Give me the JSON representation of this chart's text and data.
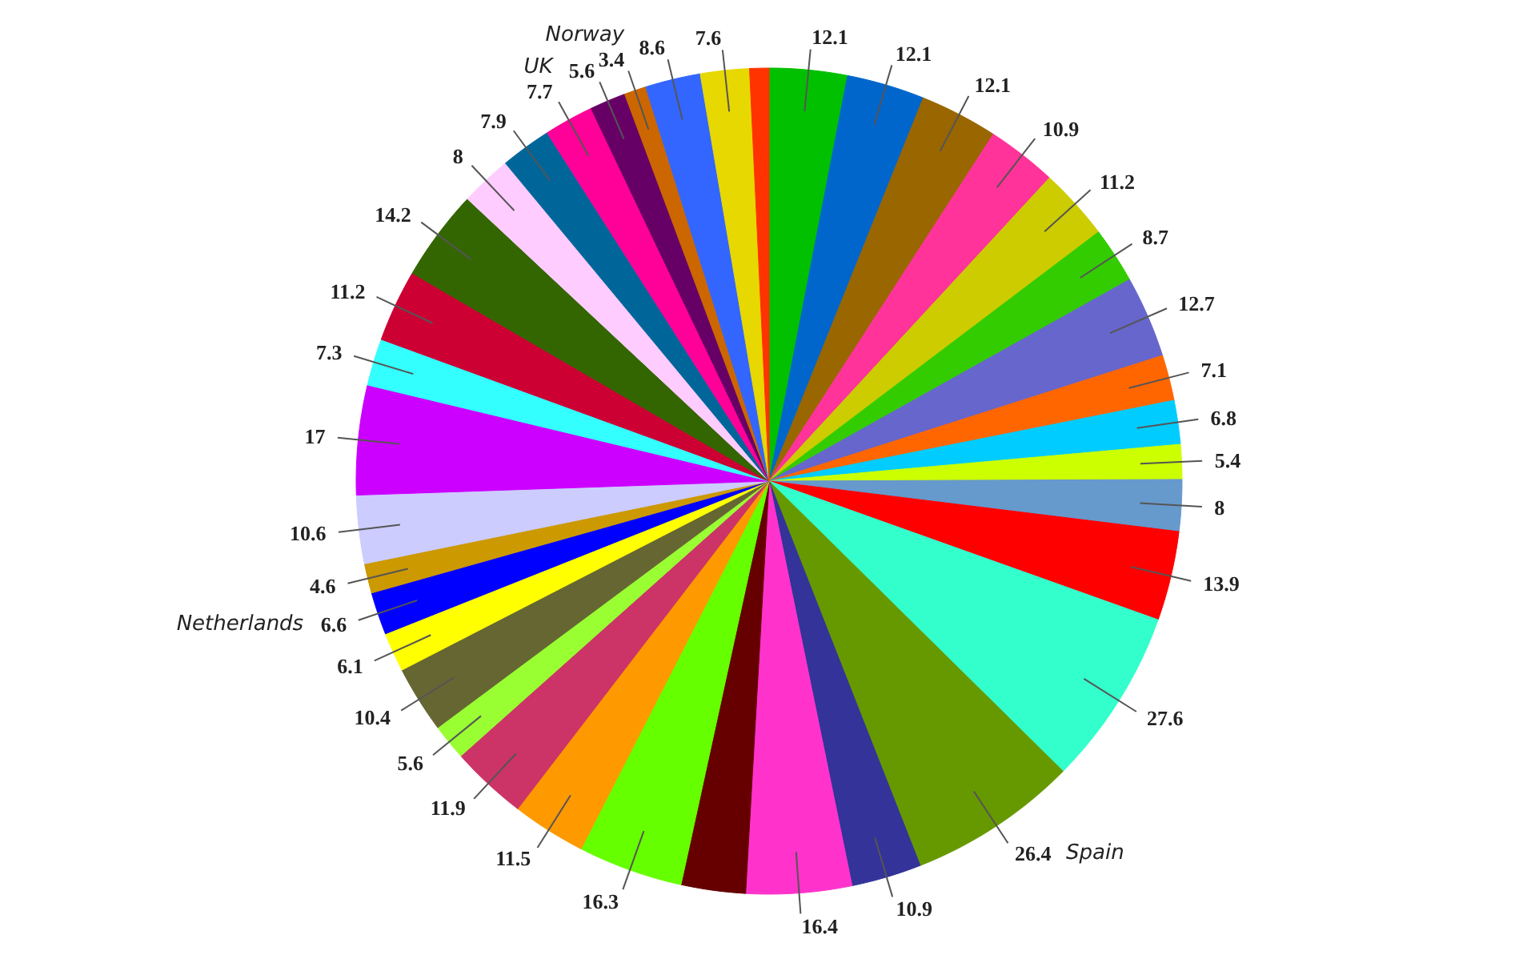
{
  "chart_data": {
    "type": "pie",
    "categories": [
      null,
      null,
      null,
      null,
      null,
      null,
      null,
      null,
      null,
      null,
      null,
      null,
      null,
      "Spain",
      null,
      null,
      null,
      null,
      null,
      null,
      null,
      null,
      null,
      "Netherlands",
      null,
      null,
      null,
      null,
      null,
      null,
      null,
      null,
      "UK",
      null,
      "Norway",
      null,
      null,
      null
    ],
    "values": [
      12.1,
      12.1,
      12.1,
      10.9,
      11.2,
      8.7,
      12.7,
      7.1,
      6.8,
      5.4,
      8,
      13.9,
      27.6,
      26.4,
      10.9,
      16.4,
      10,
      16.3,
      11.5,
      11.9,
      5.6,
      10.4,
      6.1,
      6.6,
      4.6,
      10.6,
      17,
      7.3,
      11.2,
      14.2,
      8,
      7.9,
      7.7,
      5.6,
      3.4,
      8.6,
      7.6,
      3
    ],
    "value_labels": [
      "12.1",
      "12.1",
      "12.1",
      "10.9",
      "11.2",
      "8.7",
      "12.7",
      "7.1",
      "6.8",
      "5.4",
      "8",
      "13.9",
      "27.6",
      "26.4",
      "10.9",
      "16.4",
      null,
      "16.3",
      "11.5",
      "11.9",
      "5.6",
      "10.4",
      "6.1",
      "6.6",
      "4.6",
      "10.6",
      "17",
      "7.3",
      "11.2",
      "14.2",
      "8",
      "7.9",
      "7.7",
      "5.6",
      "3.4",
      "8.6",
      "7.6",
      null
    ],
    "colors": [
      "#00c000",
      "#0066cc",
      "#996600",
      "#ff3399",
      "#cccc00",
      "#33cc00",
      "#6666cc",
      "#ff6600",
      "#00ccff",
      "#ccff00",
      "#6699cc",
      "#ff0000",
      "#33ffcc",
      "#669900",
      "#333399",
      "#ff33cc",
      "#660000",
      "#66ff00",
      "#ff9900",
      "#cc3366",
      "#99ff33",
      "#666633",
      "#ffff00",
      "#0000ff",
      "#cc9900",
      "#ccccff",
      "#cc00ff",
      "#33ffff",
      "#cc0033",
      "#336600",
      "#ffccff",
      "#006699",
      "#ff0099",
      "#660066",
      "#cc6600",
      "#3366ff",
      "#e6d800",
      "#ff3300"
    ],
    "legend": false
  }
}
